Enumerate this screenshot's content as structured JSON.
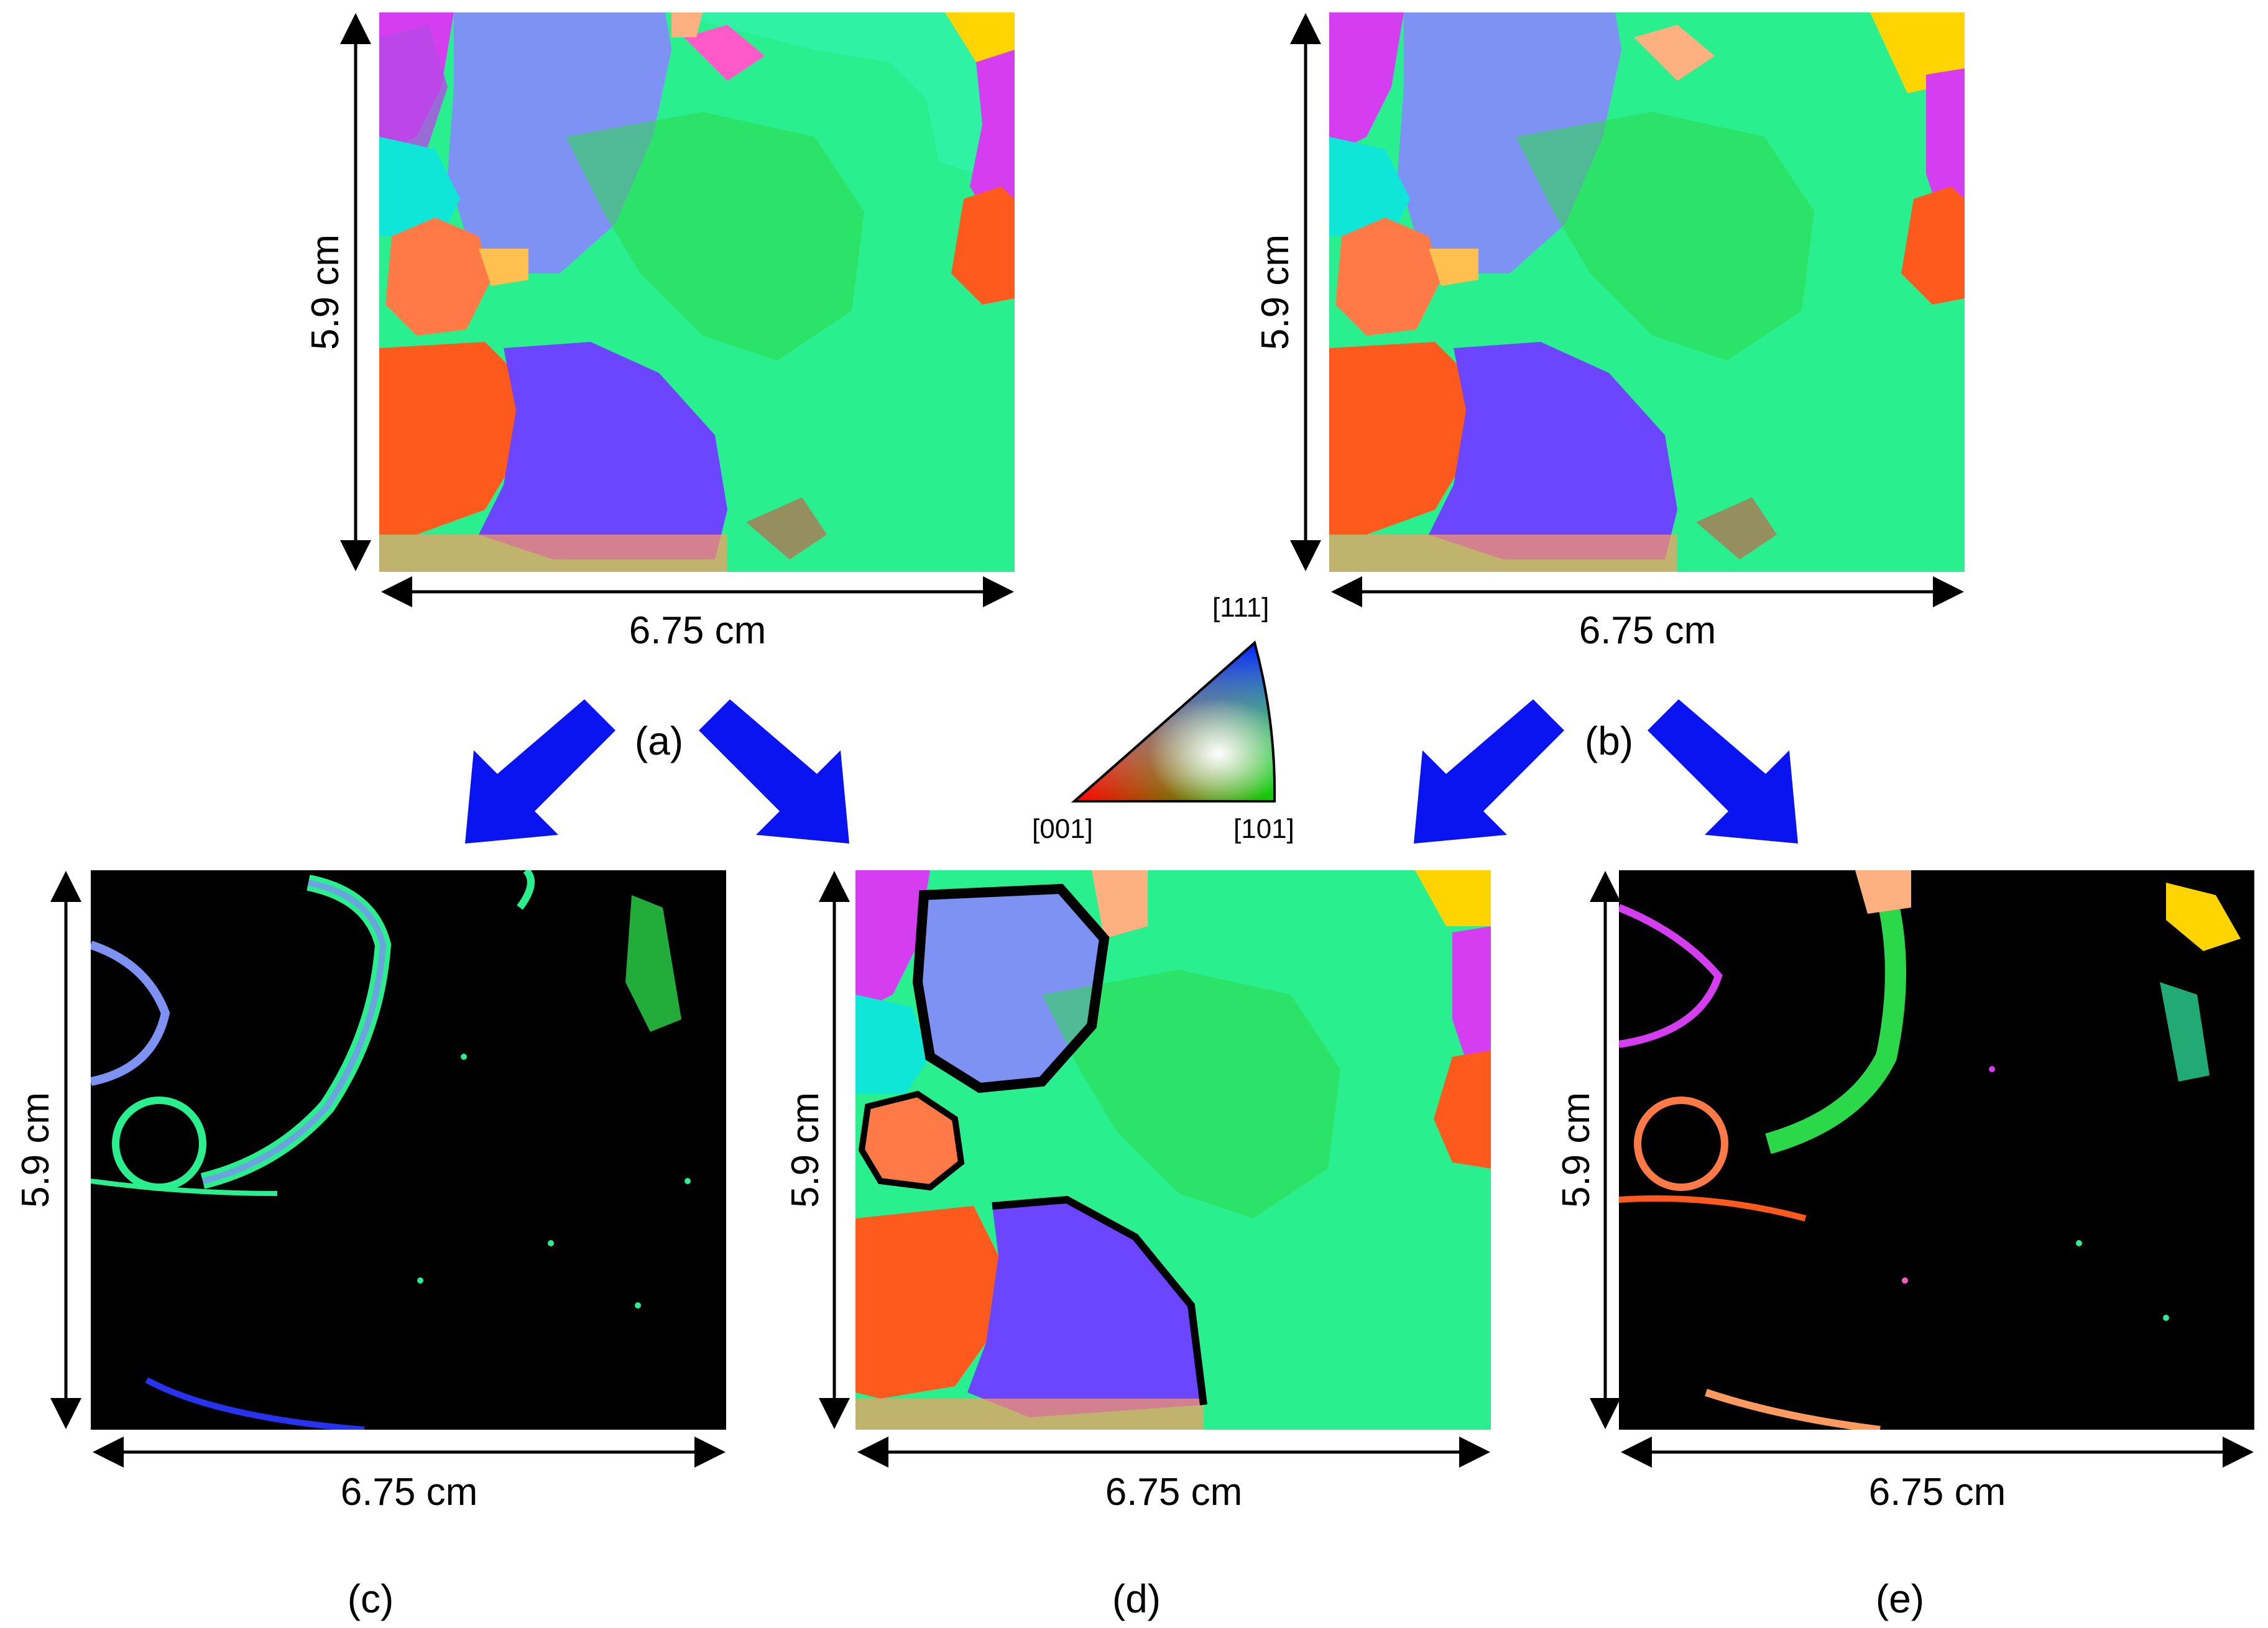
{
  "dimensions": {
    "width_label": "6.75 cm",
    "height_label": "5.9 cm"
  },
  "panels": [
    {
      "id": "a",
      "label": "(a)"
    },
    {
      "id": "b",
      "label": "(b)"
    },
    {
      "id": "c",
      "label": "(c)"
    },
    {
      "id": "d",
      "label": "(d)"
    },
    {
      "id": "e",
      "label": "(e)"
    }
  ],
  "ipf_key": {
    "corner_top": "[111]",
    "corner_left": "[001]",
    "corner_right": "[101]"
  },
  "colors": {
    "arrow": "#0a14f0",
    "background_map": "#000000",
    "grain_green": "#2aef8e",
    "grain_lightblue": "#7d92f2",
    "grain_orange": "#ff5a1e",
    "grain_violet": "#6b45ff",
    "grain_salmon": "#ff7a46",
    "grain_yellow": "#ffd400",
    "grain_cyan": "#10e6d8"
  }
}
